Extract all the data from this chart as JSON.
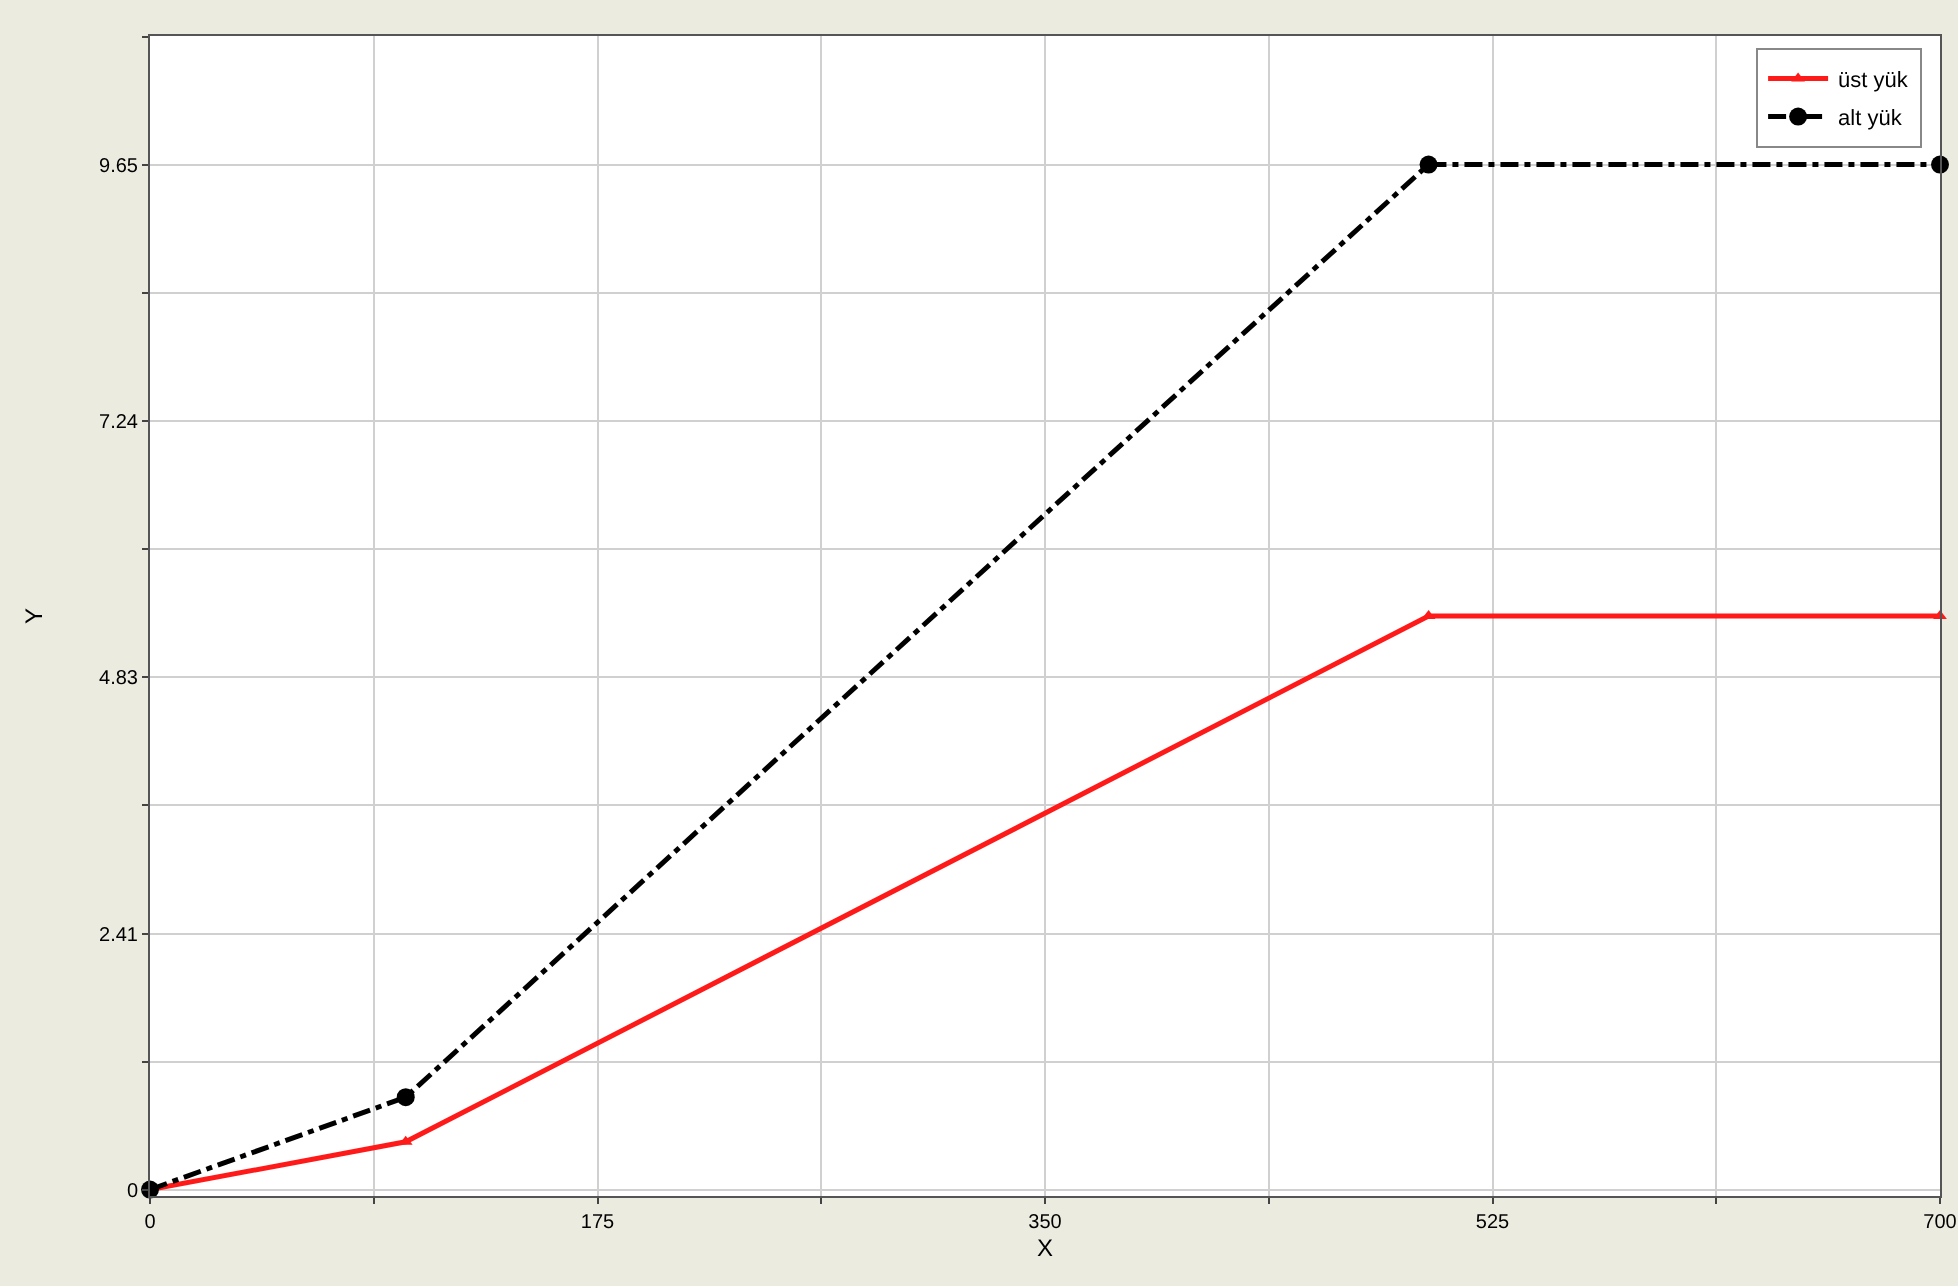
{
  "chart_data": {
    "type": "line",
    "xlabel": "X",
    "ylabel": "Y",
    "x": [
      0,
      100,
      500,
      700
    ],
    "series": [
      {
        "name": "üst yük",
        "color": "#ff1a1a",
        "values": [
          0,
          0.45,
          5.4,
          5.4
        ],
        "marker": "triangle",
        "line_style": "solid"
      },
      {
        "name": "alt yük",
        "color": "#000000",
        "values": [
          0,
          0.87,
          9.65,
          9.65
        ],
        "marker": "circle",
        "line_style": "dashed"
      }
    ],
    "xlim": [
      0,
      700
    ],
    "xticks": [
      0,
      {
        "value": 87.5,
        "label": null
      },
      175,
      {
        "value": 262.5,
        "label": null
      },
      350,
      {
        "value": 437.5,
        "label": null
      },
      525,
      {
        "value": 612.5,
        "label": null
      },
      700
    ],
    "ylim": [
      -0.06,
      10.86
    ],
    "yticks": [
      0,
      {
        "value": 1.205,
        "label": null
      },
      2.41,
      {
        "value": 3.62,
        "label": null
      },
      4.83,
      {
        "value": 6.035,
        "label": null
      },
      7.24,
      {
        "value": 8.445,
        "label": null
      },
      9.65,
      {
        "value": 10.855,
        "label": null
      }
    ],
    "grid": true,
    "legend": "top right"
  }
}
